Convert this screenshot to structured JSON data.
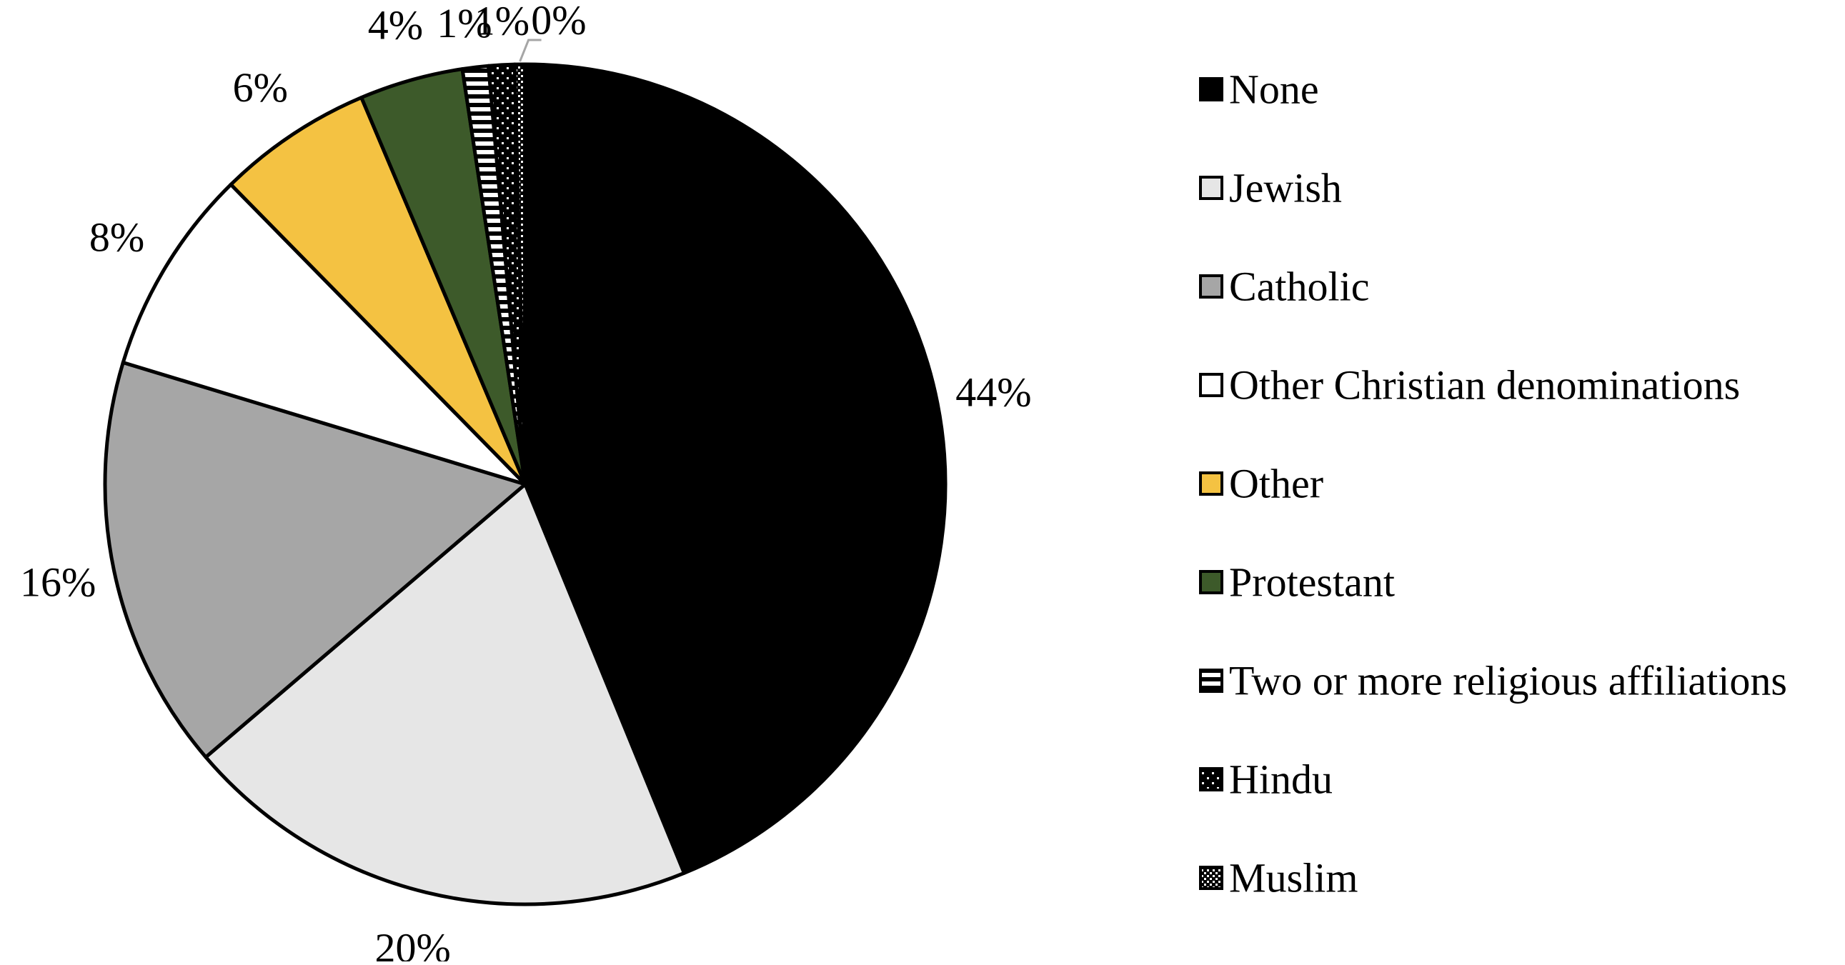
{
  "chart_data": {
    "type": "pie",
    "title": "",
    "legend_position": "right",
    "slices": [
      {
        "name": "None",
        "value": 44,
        "label": "44%",
        "color": "#000000",
        "pattern": "solid"
      },
      {
        "name": "Jewish",
        "value": 20,
        "label": "20%",
        "color": "#e6e6e6",
        "pattern": "solid"
      },
      {
        "name": "Catholic",
        "value": 16,
        "label": "16%",
        "color": "#a6a6a6",
        "pattern": "solid"
      },
      {
        "name": "Other Christian denominations",
        "value": 8,
        "label": "8%",
        "color": "#ffffff",
        "pattern": "solid"
      },
      {
        "name": "Other",
        "value": 6,
        "label": "6%",
        "color": "#f4c242",
        "pattern": "solid"
      },
      {
        "name": "Protestant",
        "value": 4,
        "label": "4%",
        "color": "#3d5a2a",
        "pattern": "solid"
      },
      {
        "name": "Two or more religious affiliations",
        "value": 1,
        "label": "1%",
        "color": "#ffffff",
        "pattern": "horizontal-stripes"
      },
      {
        "name": "Hindu",
        "value": 1,
        "label": "1%",
        "color": "#000000",
        "pattern": "sparse-dots"
      },
      {
        "name": "Muslim",
        "value": 0.4,
        "label": "0%",
        "color": "#000000",
        "pattern": "dense-dots"
      }
    ]
  }
}
